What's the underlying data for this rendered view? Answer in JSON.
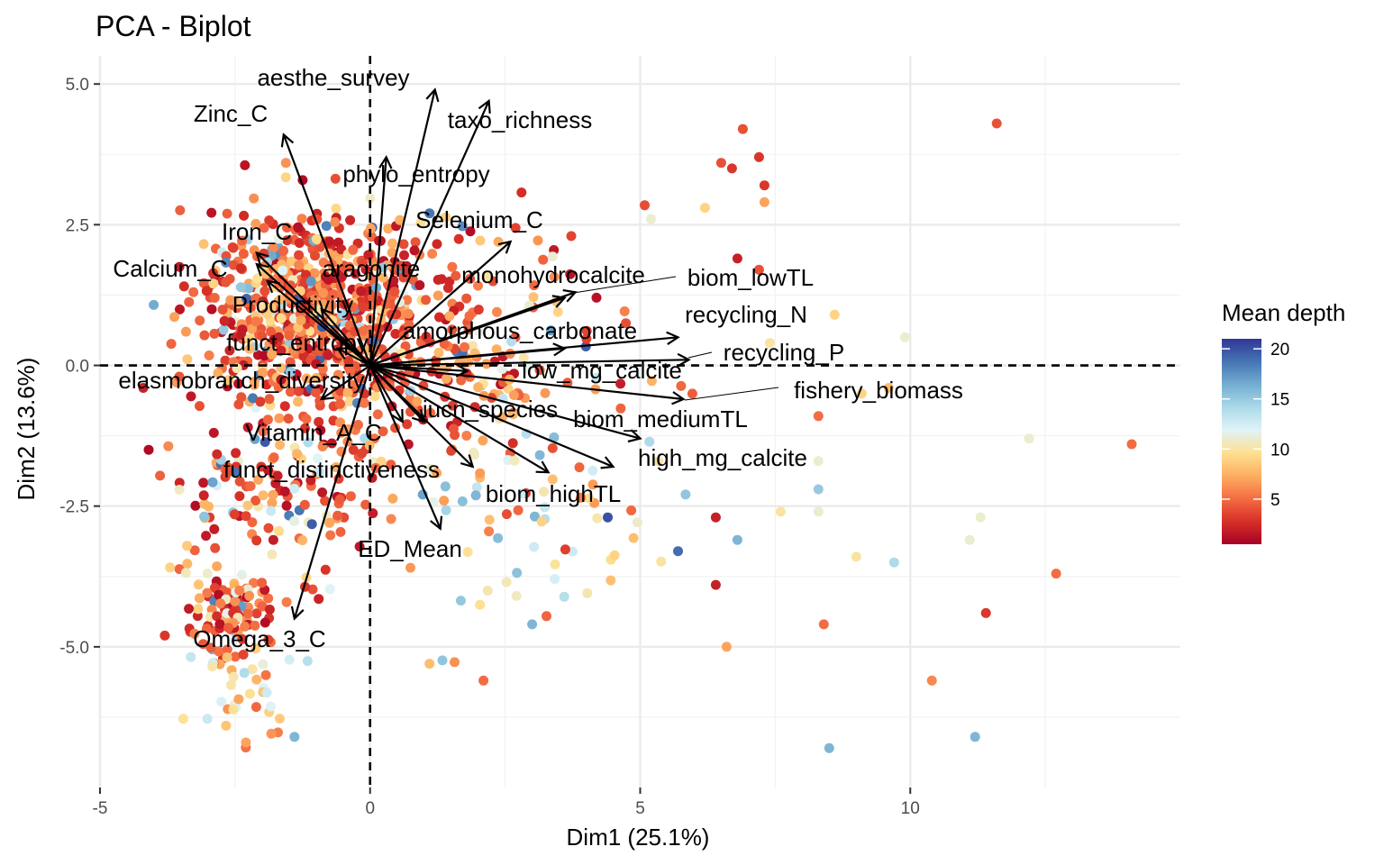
{
  "chart_data": {
    "type": "scatter",
    "title": "PCA - Biplot",
    "xlabel": "Dim1 (25.1%)",
    "ylabel": "Dim2 (13.6%)",
    "xlim": [
      -5,
      15
    ],
    "ylim": [
      -7.5,
      5.5
    ],
    "x_ticks": [
      -5,
      0,
      5,
      10
    ],
    "x_tick_labels": [
      "-5",
      "0",
      "5",
      "10"
    ],
    "y_ticks": [
      5.0,
      2.5,
      0.0,
      -2.5,
      -5.0
    ],
    "y_tick_labels": [
      "5.0",
      "2.5",
      "0.0",
      "-2.5",
      "-5.0"
    ],
    "grid": true,
    "reference_lines": {
      "x": 0,
      "y": 0,
      "style": "dashed"
    },
    "legend": {
      "title": "Mean depth",
      "position": "right",
      "range": [
        0.5,
        21
      ],
      "ticks": [
        20,
        15,
        10,
        5
      ],
      "tick_labels": [
        "20",
        "15",
        "10",
        "5"
      ],
      "palette": [
        "#a50026",
        "#d73027",
        "#f46d43",
        "#fdae61",
        "#fee090",
        "#e0f3f8",
        "#abd9e9",
        "#74add1",
        "#4575b4",
        "#313695"
      ]
    },
    "variables": [
      {
        "label": "aesthe_survey",
        "x": 1.2,
        "y": 4.9
      },
      {
        "label": "taxo_richness",
        "x": 2.2,
        "y": 4.7
      },
      {
        "label": "Zinc_C",
        "x": -1.6,
        "y": 4.1
      },
      {
        "label": "phylo_entropy",
        "x": 0.3,
        "y": 3.7
      },
      {
        "label": "Selenium_C",
        "x": 2.6,
        "y": 2.2
      },
      {
        "label": "Iron_C",
        "x": -2.1,
        "y": 2.0
      },
      {
        "label": "Calcium_C",
        "x": -2.1,
        "y": 1.8
      },
      {
        "label": "aragonite",
        "x": -1.9,
        "y": 1.5
      },
      {
        "label": "monohydrocalcite",
        "x": 3.8,
        "y": 1.3
      },
      {
        "label": "biom_lowTL",
        "x": 3.6,
        "y": 1.2
      },
      {
        "label": "Productivity",
        "x": -0.9,
        "y": 1.0
      },
      {
        "label": "recycling_N",
        "x": 5.7,
        "y": 0.5
      },
      {
        "label": "amorphous_carbonate",
        "x": 3.6,
        "y": 0.3
      },
      {
        "label": "recycling_P",
        "x": 5.9,
        "y": 0.1
      },
      {
        "label": "funct_entropy",
        "x": -0.6,
        "y": 0.3
      },
      {
        "label": "low_mg_calcite",
        "x": 1.8,
        "y": -0.1
      },
      {
        "label": "elasmobranch_diversity",
        "x": -0.9,
        "y": -0.6
      },
      {
        "label": "fishery_biomass",
        "x": 5.8,
        "y": -0.6
      },
      {
        "label": "iucn_species",
        "x": 1.0,
        "y": -1.0
      },
      {
        "label": "biom_mediumTL",
        "x": 5.0,
        "y": -1.3
      },
      {
        "label": "Vitamin_A_C",
        "x": 0.6,
        "y": -1.0
      },
      {
        "label": "high_mg_calcite",
        "x": 4.5,
        "y": -1.8
      },
      {
        "label": "funct_distinctiveness",
        "x": 1.9,
        "y": -1.8
      },
      {
        "label": "biom_highTL",
        "x": 3.3,
        "y": -1.9
      },
      {
        "label": "ED_Mean",
        "x": 1.3,
        "y": -2.9
      },
      {
        "label": "Omega_3_C",
        "x": -1.4,
        "y": -4.5
      }
    ],
    "notable_points": [
      {
        "x": 11.6,
        "y": 4.3,
        "depth": 4
      },
      {
        "x": 6.9,
        "y": 4.2,
        "depth": 4
      },
      {
        "x": 7.2,
        "y": 3.7,
        "depth": 3
      },
      {
        "x": 6.5,
        "y": 3.6,
        "depth": 4
      },
      {
        "x": 6.7,
        "y": 3.5,
        "depth": 3
      },
      {
        "x": 7.3,
        "y": 3.2,
        "depth": 3
      },
      {
        "x": 7.3,
        "y": 2.9,
        "depth": 7
      },
      {
        "x": 6.2,
        "y": 2.8,
        "depth": 9
      },
      {
        "x": 5.2,
        "y": 2.6,
        "depth": 11
      },
      {
        "x": 6.8,
        "y": 1.9,
        "depth": 2
      },
      {
        "x": 7.2,
        "y": 1.7,
        "depth": 4
      },
      {
        "x": 8.6,
        "y": 0.9,
        "depth": 9
      },
      {
        "x": 9.9,
        "y": 0.5,
        "depth": 11
      },
      {
        "x": 7.4,
        "y": 0.4,
        "depth": 10
      },
      {
        "x": 9.6,
        "y": -0.4,
        "depth": 8
      },
      {
        "x": 9.1,
        "y": -0.5,
        "depth": 9
      },
      {
        "x": 8.3,
        "y": -0.9,
        "depth": 5
      },
      {
        "x": 12.2,
        "y": -1.3,
        "depth": 11
      },
      {
        "x": 14.1,
        "y": -1.4,
        "depth": 5
      },
      {
        "x": 8.3,
        "y": -1.7,
        "depth": 11
      },
      {
        "x": 8.3,
        "y": -2.2,
        "depth": 15
      },
      {
        "x": 7.6,
        "y": -2.6,
        "depth": 10
      },
      {
        "x": 8.3,
        "y": -2.6,
        "depth": 11
      },
      {
        "x": 11.3,
        "y": -2.7,
        "depth": 11
      },
      {
        "x": 11.1,
        "y": -3.1,
        "depth": 11
      },
      {
        "x": 9.0,
        "y": -3.4,
        "depth": 10
      },
      {
        "x": 9.7,
        "y": -3.5,
        "depth": 14
      },
      {
        "x": 12.7,
        "y": -3.7,
        "depth": 5
      },
      {
        "x": 6.8,
        "y": -3.1,
        "depth": 16
      },
      {
        "x": 5.7,
        "y": -3.3,
        "depth": 19
      },
      {
        "x": 4.4,
        "y": -2.7,
        "depth": 20
      },
      {
        "x": 6.4,
        "y": -2.7,
        "depth": 2
      },
      {
        "x": 6.4,
        "y": -3.9,
        "depth": 2
      },
      {
        "x": 11.4,
        "y": -4.4,
        "depth": 3
      },
      {
        "x": 8.4,
        "y": -4.6,
        "depth": 5
      },
      {
        "x": 6.6,
        "y": -5.0,
        "depth": 7
      },
      {
        "x": 10.4,
        "y": -5.6,
        "depth": 6
      },
      {
        "x": 8.5,
        "y": -6.8,
        "depth": 16
      },
      {
        "x": 11.2,
        "y": -6.6,
        "depth": 16
      },
      {
        "x": 3.0,
        "y": -4.6,
        "depth": 16
      },
      {
        "x": 2.1,
        "y": -5.6,
        "depth": 5
      },
      {
        "x": 1.1,
        "y": -5.3,
        "depth": 8
      },
      {
        "x": -3.8,
        "y": -4.8,
        "depth": 3
      },
      {
        "x": -4.2,
        "y": -0.4,
        "depth": 2
      },
      {
        "x": -4.1,
        "y": -1.5,
        "depth": 1
      },
      {
        "x": -1.4,
        "y": -6.6,
        "depth": 16
      },
      {
        "x": -2.3,
        "y": -6.7,
        "depth": 7
      }
    ]
  }
}
